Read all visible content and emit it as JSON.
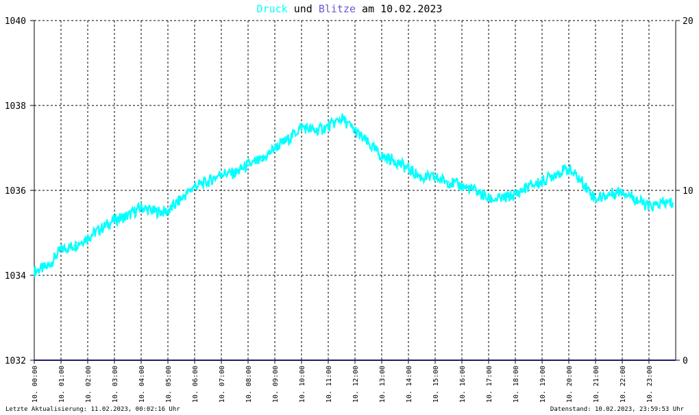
{
  "title": {
    "part1": "Druck",
    "part2": " und ",
    "part3": "Blitze",
    "part4": " am 10.02.2023"
  },
  "colors": {
    "druck": "#00ffff",
    "blitze": "#6a5acd",
    "blitze_line": "#1a1a6e",
    "grid": "#000000",
    "title_text": "#000000"
  },
  "footer": {
    "left": "Letzte Aktualisierung: 11.02.2023, 00:02:16 Uhr",
    "right": "Datenstand: 10.02.2023, 23:59:53 Uhr"
  },
  "chart_data": {
    "type": "line",
    "title": "Druck und Blitze am 10.02.2023",
    "grid": true,
    "x_tick_labels": [
      "10. 00:00",
      "10. 01:00",
      "10. 02:00",
      "10. 03:00",
      "10. 04:00",
      "10. 05:00",
      "10. 06:00",
      "10. 07:00",
      "10. 08:00",
      "10. 09:00",
      "10. 10:00",
      "10. 11:00",
      "10. 12:00",
      "10. 13:00",
      "10. 14:00",
      "10. 15:00",
      "10. 16:00",
      "10. 17:00",
      "10. 18:00",
      "10. 19:00",
      "10. 20:00",
      "10. 21:00",
      "10. 22:00",
      "10. 23:00"
    ],
    "x_range_hours": [
      0,
      24
    ],
    "y_left": {
      "ylim": [
        1032,
        1040
      ],
      "ticks": [
        "1032",
        "1034",
        "1036",
        "1038",
        "1040"
      ]
    },
    "y_right": {
      "ylim": [
        0,
        20
      ],
      "ticks": [
        "0",
        "10",
        "20"
      ]
    },
    "series": [
      {
        "name": "Druck",
        "axis": "left",
        "x_hours": [
          0,
          0.5,
          1,
          1.5,
          2,
          2.5,
          3,
          3.5,
          4,
          4.5,
          5,
          5.5,
          6,
          6.5,
          7,
          7.5,
          8,
          8.5,
          9,
          9.5,
          10,
          10.5,
          11,
          11.5,
          12,
          12.5,
          13,
          13.5,
          14,
          14.5,
          15,
          15.5,
          16,
          16.5,
          17,
          17.5,
          18,
          18.5,
          19,
          19.5,
          20,
          20.5,
          21,
          21.5,
          22,
          22.5,
          23,
          23.5,
          23.9
        ],
        "values": [
          1034.1,
          1034.2,
          1034.6,
          1034.7,
          1034.9,
          1035.1,
          1035.3,
          1035.4,
          1035.6,
          1035.5,
          1035.5,
          1035.8,
          1036.1,
          1036.2,
          1036.4,
          1036.4,
          1036.6,
          1036.7,
          1037.0,
          1037.2,
          1037.5,
          1037.4,
          1037.5,
          1037.7,
          1037.4,
          1037.1,
          1036.8,
          1036.7,
          1036.5,
          1036.3,
          1036.3,
          1036.2,
          1036.1,
          1036.0,
          1035.8,
          1035.8,
          1035.9,
          1036.1,
          1036.2,
          1036.4,
          1036.5,
          1036.2,
          1035.8,
          1035.9,
          1036.0,
          1035.8,
          1035.6,
          1035.7,
          1035.7
        ]
      },
      {
        "name": "Blitze",
        "axis": "right",
        "x_hours": [
          0,
          24
        ],
        "values": [
          0,
          0
        ]
      }
    ]
  }
}
